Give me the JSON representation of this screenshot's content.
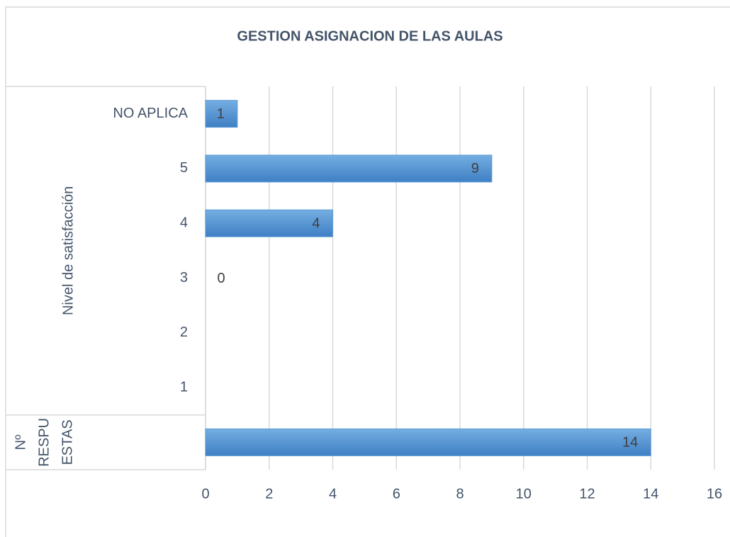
{
  "chart_data": {
    "type": "hbar",
    "title": "GESTION ASIGNACION DE LAS AULAS",
    "categories": [
      "NO APLICA",
      "5",
      "4",
      "3",
      "2",
      "1",
      null
    ],
    "values": [
      1,
      9,
      4,
      0,
      null,
      null,
      14
    ],
    "groups": [
      {
        "label": [
          "Nivel de satisfacción"
        ],
        "count": 6
      },
      {
        "label": [
          "Nº",
          "RESPU",
          "ESTAS"
        ],
        "count": 1
      }
    ],
    "color": "#5b9bd5",
    "xlim": [
      0,
      16
    ],
    "xticks": [
      0,
      2,
      4,
      6,
      8,
      10,
      12,
      14,
      16
    ],
    "grid": true
  }
}
